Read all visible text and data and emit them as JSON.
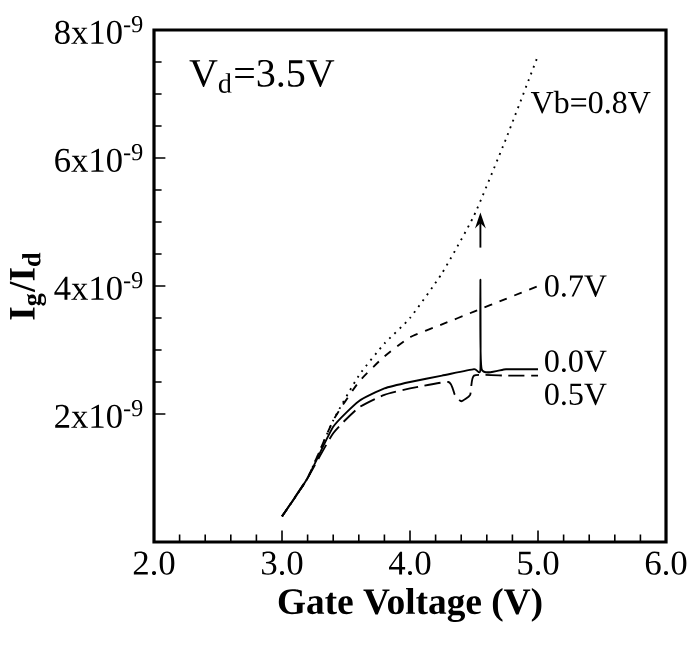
{
  "chart_data": {
    "type": "line",
    "xlabel": "**Gate Voltage (V)**",
    "ylabel": "**I$_{g}$/I$_{d}$**",
    "annotations": [
      "V$_{d}$=3.5V"
    ],
    "xlim": [
      2.0,
      6.0
    ],
    "xticks": [
      {
        "value": 2,
        "label": "2.0"
      },
      {
        "value": 3,
        "label": "3.0"
      },
      {
        "value": 4,
        "label": "4.0"
      },
      {
        "value": 5,
        "label": "5.0"
      },
      {
        "value": 6,
        "label": "6.0"
      }
    ],
    "ylim": [
      0,
      8e-09
    ],
    "yticks": [
      {
        "value": 2e-09,
        "label": "2x10$^{-9}$"
      },
      {
        "value": 4e-09,
        "label": "4x10$^{-9}$"
      },
      {
        "value": 6e-09,
        "label": "6x10$^{-9}$"
      },
      {
        "value": 8e-09,
        "label": "8x10$^{-9}$"
      }
    ],
    "grid": false,
    "marker": "none",
    "series": [
      {
        "name": "Vb=0.8V",
        "color": "#000000",
        "line_style": "dotted",
        "x": [
          3.0,
          3.2,
          3.4,
          3.6,
          3.8,
          4.0,
          4.25,
          4.5,
          4.75,
          5.0
        ],
        "values": [
          4e-10,
          1e-09,
          1.9e-09,
          2.6e-09,
          3.1e-09,
          3.5e-09,
          4.2e-09,
          5.1e-09,
          6.3e-09,
          7.6e-09
        ]
      },
      {
        "name": "0.7V",
        "color": "#000000",
        "line_style": "dashed",
        "x": [
          3.0,
          3.2,
          3.4,
          3.6,
          3.8,
          4.0,
          4.25,
          4.5,
          4.75,
          5.0
        ],
        "values": [
          4e-10,
          1e-09,
          1.9e-09,
          2.5e-09,
          2.9e-09,
          3.2e-09,
          3.4e-09,
          3.6e-09,
          3.8e-09,
          4e-09
        ]
      },
      {
        "name": "0.0V",
        "color": "#000000",
        "line_style": "solid",
        "x": [
          3.0,
          3.2,
          3.4,
          3.6,
          3.8,
          4.0,
          4.25,
          4.5,
          4.55,
          4.55,
          4.56,
          4.75,
          5.0
        ],
        "values": [
          4e-10,
          1e-09,
          1.8e-09,
          2.2e-09,
          2.4e-09,
          2.5e-09,
          2.6e-09,
          2.7e-09,
          2.7e-09,
          4.1e-09,
          2.7e-09,
          2.7e-09,
          2.7e-09
        ]
      },
      {
        "name": "0.5V",
        "color": "#000000",
        "line_style": "loosely dashed",
        "x": [
          3.0,
          3.2,
          3.4,
          3.6,
          3.8,
          4.0,
          4.3,
          4.35,
          4.4,
          4.47,
          4.5,
          4.75,
          5.0
        ],
        "values": [
          4e-10,
          1e-09,
          1.7e-09,
          2.1e-09,
          2.3e-09,
          2.4e-09,
          2.5e-09,
          2.3e-09,
          2.2e-09,
          2.3e-09,
          2.6e-09,
          2.6e-09,
          2.6e-09
        ]
      }
    ]
  }
}
